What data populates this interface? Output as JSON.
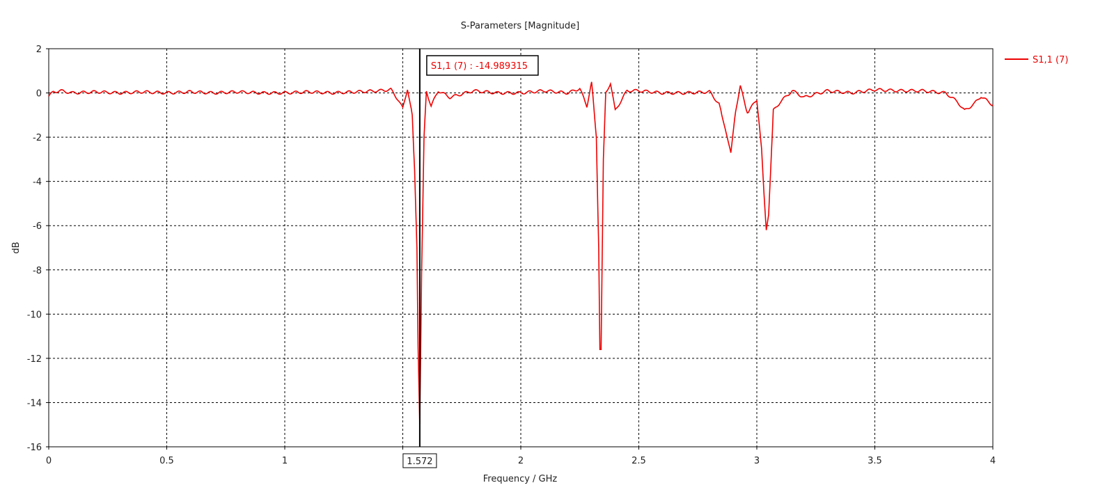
{
  "chart_data": {
    "type": "line",
    "title": "S-Parameters [Magnitude]",
    "xlabel": "Frequency / GHz",
    "ylabel": "dB",
    "xlim": [
      0,
      4
    ],
    "ylim": [
      -16,
      2
    ],
    "xticks": [
      0,
      0.5,
      1,
      1.5,
      2,
      2.5,
      3,
      3.5,
      4
    ],
    "xtick_labels": [
      "0",
      "0.5",
      "1",
      "",
      "2",
      "2.5",
      "3",
      "3.5",
      "4"
    ],
    "yticks": [
      2,
      0,
      -2,
      -4,
      -6,
      -8,
      -10,
      -12,
      -14,
      -16
    ],
    "ytick_labels": [
      "2",
      "0",
      "-2",
      "-4",
      "-6",
      "-8",
      "-10",
      "-12",
      "-14",
      "-16"
    ],
    "grid": true,
    "legend_position": "top-right",
    "series": [
      {
        "name": "S1,1 (7)",
        "color": "#ee0000",
        "x": [
          0,
          0.02,
          0.05,
          0.1,
          0.2,
          0.3,
          0.4,
          0.5,
          0.6,
          0.7,
          0.8,
          0.9,
          1.0,
          1.1,
          1.2,
          1.3,
          1.4,
          1.45,
          1.48,
          1.5,
          1.52,
          1.54,
          1.55,
          1.56,
          1.565,
          1.572,
          1.58,
          1.59,
          1.6,
          1.62,
          1.65,
          1.7,
          1.8,
          1.9,
          2.0,
          2.1,
          2.2,
          2.25,
          2.28,
          2.3,
          2.32,
          2.33,
          2.335,
          2.34,
          2.35,
          2.36,
          2.38,
          2.4,
          2.45,
          2.5,
          2.6,
          2.7,
          2.8,
          2.84,
          2.87,
          2.89,
          2.91,
          2.93,
          2.96,
          2.98,
          3.0,
          3.02,
          3.03,
          3.04,
          3.05,
          3.07,
          3.1,
          3.15,
          3.2,
          3.3,
          3.4,
          3.5,
          3.6,
          3.7,
          3.8,
          3.85,
          3.88,
          3.92,
          3.95,
          4.0
        ],
        "y": [
          -0.15,
          0.05,
          0.1,
          0.0,
          0.05,
          0.0,
          0.05,
          0.0,
          0.05,
          0.0,
          0.05,
          0.0,
          0.0,
          0.05,
          0.0,
          0.05,
          0.1,
          0.15,
          -0.3,
          -0.7,
          0.2,
          -1.0,
          -3.5,
          -7.0,
          -11.5,
          -14.99,
          -8.0,
          -2.0,
          0.1,
          -0.6,
          0.1,
          -0.2,
          0.1,
          0.0,
          0.0,
          0.1,
          0.0,
          0.2,
          -0.6,
          0.5,
          -2.0,
          -7.0,
          -11.6,
          -11.6,
          -3.0,
          0.0,
          0.45,
          -0.8,
          0.1,
          0.1,
          0.0,
          0.0,
          0.05,
          -0.5,
          -1.8,
          -2.7,
          -0.8,
          0.3,
          -0.9,
          -0.6,
          -0.3,
          -2.5,
          -4.5,
          -6.2,
          -5.5,
          -0.8,
          -0.4,
          0.1,
          -0.2,
          0.1,
          0.0,
          0.15,
          0.1,
          0.1,
          0.0,
          -0.4,
          -0.8,
          -0.5,
          -0.15,
          -0.55
        ]
      }
    ],
    "marker": {
      "x": 1.572,
      "x_label": "1.572",
      "annotation": "S1,1 (7) : -14.989315",
      "annotation_color": "#ee0000"
    }
  }
}
